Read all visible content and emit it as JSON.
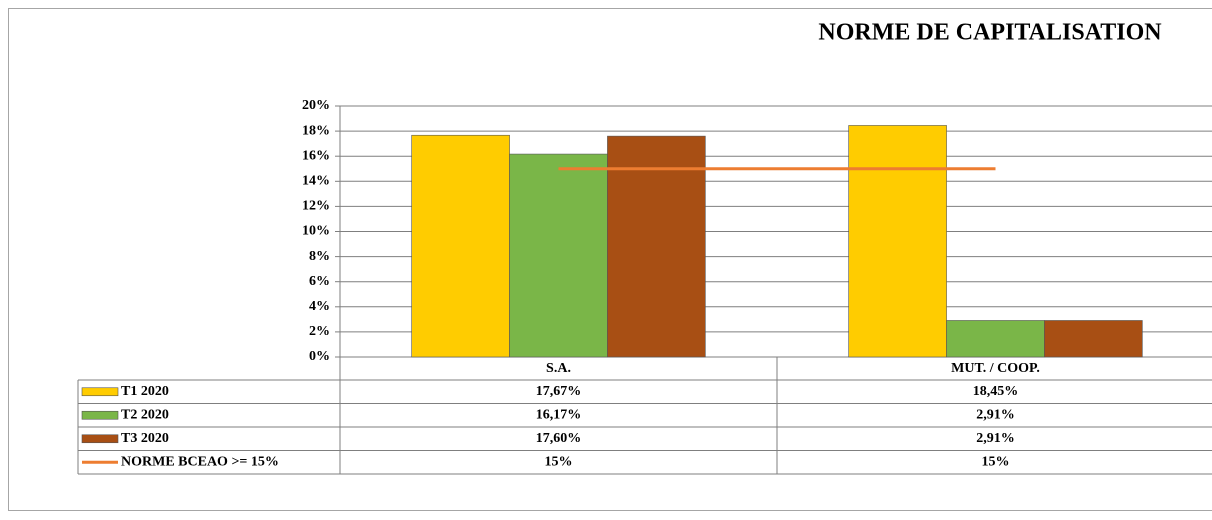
{
  "chart_data": {
    "type": "bar",
    "title": "NORME DE CAPITALISATION",
    "categories": [
      "S.A.",
      "MUT. / COOP."
    ],
    "series": [
      {
        "name": "T1 2020",
        "color": "#ffcc00",
        "values": [
          17.67,
          18.45
        ],
        "value_labels": [
          "17,67%",
          "18,45%"
        ]
      },
      {
        "name": "T2 2020",
        "color": "#7ab648",
        "values": [
          16.17,
          2.91
        ],
        "value_labels": [
          "16,17%",
          "2,91%"
        ]
      },
      {
        "name": "T3 2020",
        "color": "#a84f14",
        "values": [
          17.6,
          2.91
        ],
        "value_labels": [
          "17,60%",
          "2,91%"
        ]
      },
      {
        "name": "NORME BCEAO >= 15%",
        "color": "#ed7d31",
        "type": "line",
        "values": [
          15,
          15
        ],
        "value_labels": [
          "15%",
          "15%"
        ]
      }
    ],
    "ylim": [
      0,
      20
    ],
    "yticks": [
      {
        "value": 0,
        "label": "0%"
      },
      {
        "value": 2,
        "label": "2%"
      },
      {
        "value": 4,
        "label": "4%"
      },
      {
        "value": 6,
        "label": "6%"
      },
      {
        "value": 8,
        "label": "8%"
      },
      {
        "value": 10,
        "label": "10%"
      },
      {
        "value": 12,
        "label": "12%"
      },
      {
        "value": 14,
        "label": "14%"
      },
      {
        "value": 16,
        "label": "16%"
      },
      {
        "value": 18,
        "label": "18%"
      },
      {
        "value": 20,
        "label": "20%"
      }
    ],
    "grid": true
  }
}
